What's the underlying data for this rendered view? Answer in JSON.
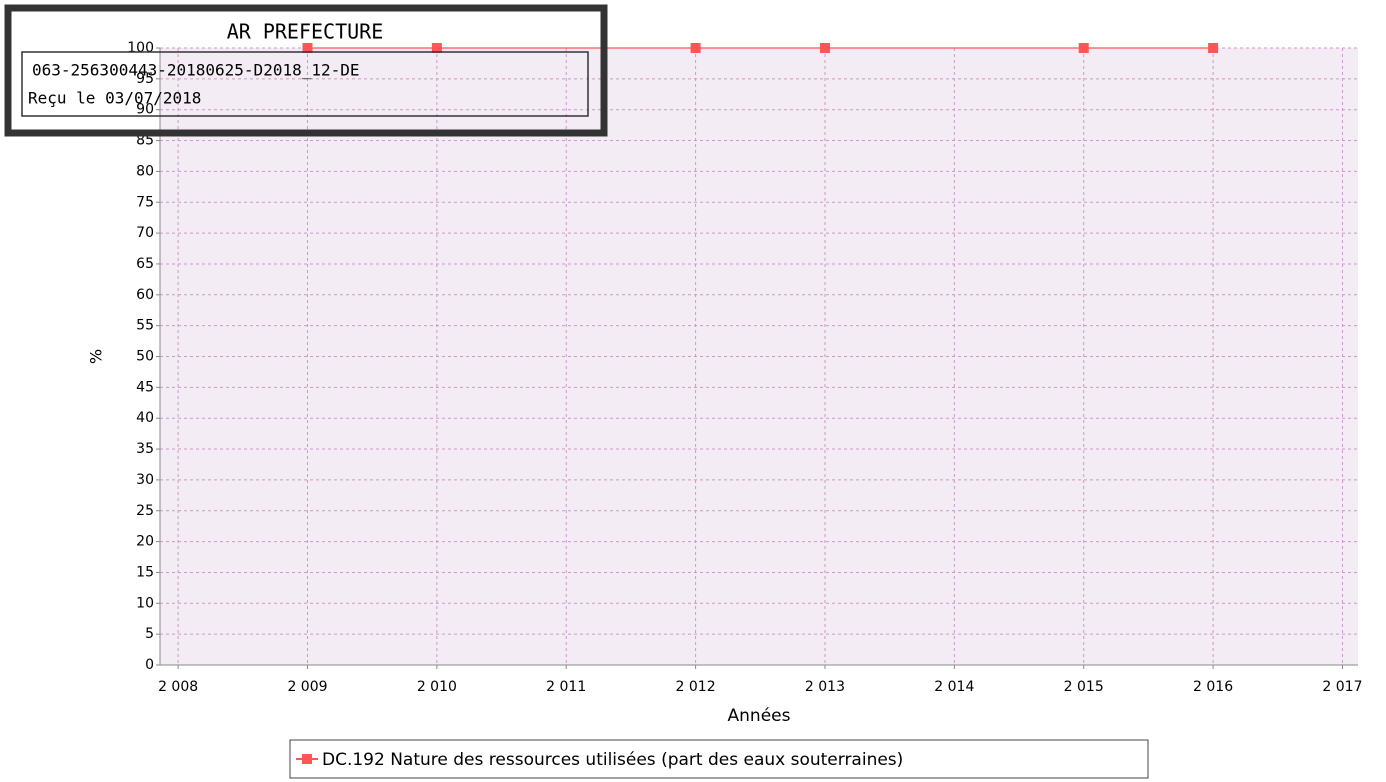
{
  "chart_data": {
    "type": "line",
    "x": [
      2009,
      2010,
      2012,
      2013,
      2015,
      2016
    ],
    "series": [
      {
        "name": "DC.192 Nature des ressources utilisées (part des eaux souterraines)",
        "color": "#ff5555",
        "values": [
          100,
          100,
          100,
          100,
          100,
          100
        ]
      }
    ],
    "xlabel": "Années",
    "ylabel": "%",
    "xlim": [
      2007.86,
      2017.12
    ],
    "ylim": [
      0,
      100
    ],
    "xticks": [
      {
        "value": 2008,
        "label": "2 008"
      },
      {
        "value": 2009,
        "label": "2 009"
      },
      {
        "value": 2010,
        "label": "2 010"
      },
      {
        "value": 2011,
        "label": "2 011"
      },
      {
        "value": 2012,
        "label": "2 012"
      },
      {
        "value": 2013,
        "label": "2 013"
      },
      {
        "value": 2014,
        "label": "2 014"
      },
      {
        "value": 2015,
        "label": "2 015"
      },
      {
        "value": 2016,
        "label": "2 016"
      },
      {
        "value": 2017,
        "label": "2 017"
      }
    ],
    "yticks": [
      0,
      5,
      10,
      15,
      20,
      25,
      30,
      35,
      40,
      45,
      50,
      55,
      60,
      65,
      70,
      75,
      80,
      85,
      90,
      95,
      100
    ],
    "grid": true,
    "legend": "bottom"
  },
  "stamp": {
    "title": "AR PREFECTURE",
    "reference": "063-256300443-20180625-D2018_12-DE",
    "received": "Reçu le 03/07/2018"
  }
}
